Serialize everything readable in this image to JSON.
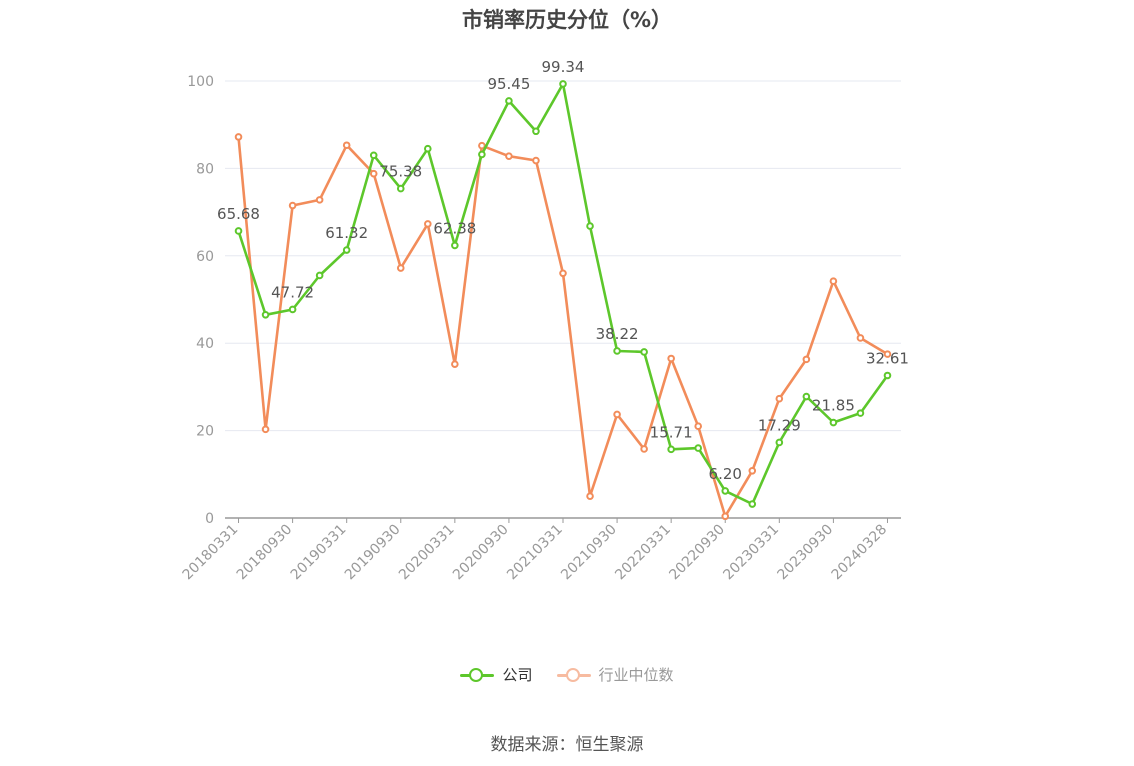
{
  "title": "市销率历史分位（%）",
  "source": "数据来源：恒生聚源",
  "legend": {
    "company": "公司",
    "industry": "行业中位数"
  },
  "colors": {
    "company": "#5dc72b",
    "industry": "#f28c5a",
    "industry_legend": "#f7bba0",
    "grid": "#e6e8f0",
    "axis": "#999999",
    "tick_label": "#999999",
    "data_label": "#555555"
  },
  "chart_data": {
    "type": "line",
    "x_tick_labels": [
      "20180331",
      "20180930",
      "20190331",
      "20190930",
      "20200331",
      "20200930",
      "20210331",
      "20210930",
      "20220331",
      "20220930",
      "20230331",
      "20230930",
      "20240328"
    ],
    "ylim": [
      0,
      100
    ],
    "yticks": [
      0,
      20,
      40,
      60,
      80,
      100
    ],
    "grid": true,
    "legend_position": "bottom",
    "series": [
      {
        "name": "公司",
        "values": [
          65.68,
          46.5,
          47.72,
          55.5,
          61.32,
          83.0,
          75.38,
          84.5,
          62.38,
          83.2,
          95.45,
          88.5,
          99.34,
          66.8,
          38.22,
          38.0,
          15.71,
          16.0,
          6.2,
          3.2,
          17.29,
          27.8,
          21.85,
          24.0,
          32.61
        ],
        "labels": [
          "65.68",
          "",
          "47.72",
          "",
          "61.32",
          "",
          "75.38",
          "",
          "62.38",
          "",
          "95.45",
          "",
          "99.34",
          "",
          "38.22",
          "",
          "15.71",
          "",
          "6.20",
          "",
          "17.29",
          "",
          "21.85",
          "",
          "32.61"
        ]
      },
      {
        "name": "行业中位数",
        "values": [
          87.2,
          20.3,
          71.5,
          72.8,
          85.3,
          78.8,
          57.2,
          67.3,
          35.2,
          85.2,
          82.8,
          81.8,
          56.0,
          5.0,
          23.7,
          15.8,
          36.5,
          21.0,
          0.4,
          10.8,
          27.3,
          36.3,
          54.2,
          41.2,
          37.5
        ]
      }
    ]
  }
}
